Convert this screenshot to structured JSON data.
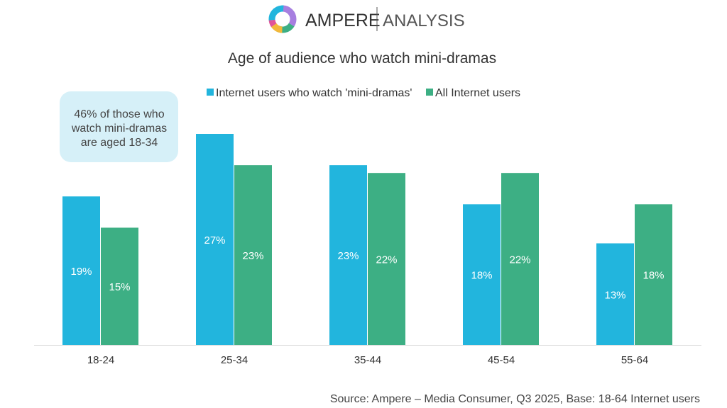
{
  "logo": {
    "brand": "AMPERE",
    "suffix": "ANALYSIS"
  },
  "chart_data": {
    "type": "bar",
    "title": "Age of audience who watch mini-dramas",
    "categories": [
      "18-24",
      "25-34",
      "35-44",
      "45-54",
      "55-64"
    ],
    "series": [
      {
        "name": "Internet users who watch 'mini-dramas'",
        "values": [
          19,
          27,
          23,
          18,
          13
        ],
        "labels": [
          "19%",
          "27%",
          "23%",
          "18%",
          "13%"
        ],
        "color": "#22b5dd"
      },
      {
        "name": "All Internet users",
        "values": [
          15,
          23,
          22,
          22,
          18
        ],
        "labels": [
          "15%",
          "23%",
          "22%",
          "22%",
          "18%"
        ],
        "color": "#3daf84"
      }
    ],
    "ylim": [
      0,
      30
    ],
    "grid": false,
    "legend": "top",
    "annotation": [
      "46% of those who",
      "watch mini-dramas",
      "are aged 18-34"
    ],
    "annotation_color": "#d6f0f8",
    "source": "Source: Ampere – Media Consumer, Q3 2025, Base: 18-64 Internet users"
  }
}
